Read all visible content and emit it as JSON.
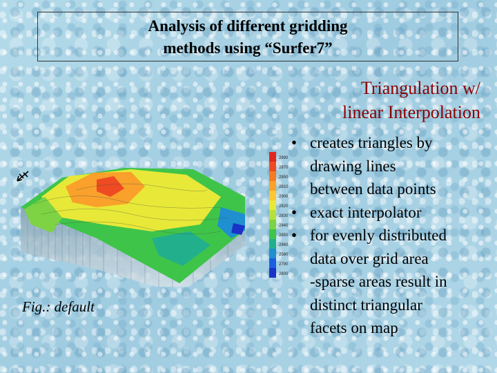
{
  "title": {
    "line1": "Analysis of different gridding",
    "line2": "methods using “Surfer7”"
  },
  "subtitle": {
    "line1": "Triangulation w/",
    "line2": "linear Interpolation"
  },
  "bullets": [
    {
      "lines": [
        "creates triangles by",
        "drawing lines",
        "between data points"
      ]
    },
    {
      "lines": [
        "exact interpolator"
      ]
    },
    {
      "lines": [
        "for evenly distributed",
        "data over grid area",
        "-sparse areas result in",
        "distinct triangular",
        "facets on map"
      ]
    }
  ],
  "figure": {
    "caption": "Fig.: default",
    "colorbar_labels": [
      "2890",
      "2870",
      "2850",
      "2810",
      "2900",
      "2820",
      "2830",
      "2840",
      "2850",
      "2860",
      "2580",
      "2790",
      "2800"
    ],
    "colorbar_colors": [
      "#e0281e",
      "#ee4b22",
      "#f57a25",
      "#f9a12b",
      "#fbc732",
      "#e8e838",
      "#b6e03c",
      "#7dd343",
      "#3fc44a",
      "#22b08c",
      "#1f8fd0",
      "#1a5fe0",
      "#1a32c8"
    ],
    "north_icon": "north-arrow-icon"
  }
}
